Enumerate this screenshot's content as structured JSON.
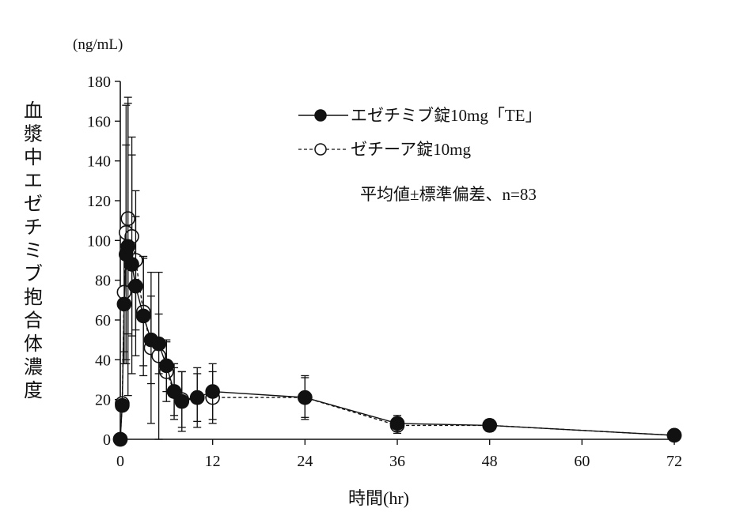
{
  "chart_data": {
    "type": "line",
    "title": "",
    "unit_label": "(ng/mL)",
    "ylabel": "血漿中エゼチミブ抱合体濃度",
    "xlabel": "時間(hr)",
    "xlim": [
      0,
      72
    ],
    "ylim": [
      0,
      180
    ],
    "xticks": [
      0,
      12,
      24,
      36,
      48,
      60,
      72
    ],
    "yticks": [
      0,
      20,
      40,
      60,
      80,
      100,
      120,
      140,
      160,
      180
    ],
    "grid": false,
    "legend_position": "top-right",
    "stats_note": "平均値±標準偏差、n=83",
    "series": [
      {
        "name": "エゼチミブ錠10mg「TE」",
        "marker": "filled-circle",
        "line_style": "solid",
        "color": "#111111",
        "points": [
          {
            "x": 0,
            "y": 0,
            "sd": 0
          },
          {
            "x": 0.25,
            "y": 17,
            "sd": 0
          },
          {
            "x": 0.5,
            "y": 68,
            "sd": 30
          },
          {
            "x": 0.75,
            "y": 93,
            "sd": 55
          },
          {
            "x": 1,
            "y": 97,
            "sd": 75
          },
          {
            "x": 1.5,
            "y": 88,
            "sd": 55
          },
          {
            "x": 2,
            "y": 77,
            "sd": 35
          },
          {
            "x": 3,
            "y": 62,
            "sd": 30
          },
          {
            "x": 4,
            "y": 50,
            "sd": 22
          },
          {
            "x": 5,
            "y": 48,
            "sd": 15
          },
          {
            "x": 6,
            "y": 37,
            "sd": 13
          },
          {
            "x": 7,
            "y": 24,
            "sd": 12
          },
          {
            "x": 8,
            "y": 19,
            "sd": 15
          },
          {
            "x": 10,
            "y": 21,
            "sd": 15
          },
          {
            "x": 12,
            "y": 24,
            "sd": 14
          },
          {
            "x": 24,
            "y": 21,
            "sd": 11
          },
          {
            "x": 36,
            "y": 8,
            "sd": 4
          },
          {
            "x": 48,
            "y": 7,
            "sd": 3
          },
          {
            "x": 72,
            "y": 2,
            "sd": 1
          }
        ]
      },
      {
        "name": "ゼチーア錠10mg",
        "marker": "open-circle",
        "line_style": "dashed",
        "color": "#111111",
        "points": [
          {
            "x": 0,
            "y": 0,
            "sd": 0
          },
          {
            "x": 0.25,
            "y": 18,
            "sd": 0
          },
          {
            "x": 0.5,
            "y": 74,
            "sd": 30
          },
          {
            "x": 0.75,
            "y": 104,
            "sd": 64
          },
          {
            "x": 1,
            "y": 111,
            "sd": 58
          },
          {
            "x": 1.5,
            "y": 102,
            "sd": 50
          },
          {
            "x": 2,
            "y": 90,
            "sd": 35
          },
          {
            "x": 3,
            "y": 64,
            "sd": 27
          },
          {
            "x": 4,
            "y": 46,
            "sd": 38
          },
          {
            "x": 5,
            "y": 42,
            "sd": 42
          },
          {
            "x": 6,
            "y": 34,
            "sd": 15
          },
          {
            "x": 7,
            "y": 24,
            "sd": 14
          },
          {
            "x": 8,
            "y": 20,
            "sd": 14
          },
          {
            "x": 10,
            "y": 21,
            "sd": 12
          },
          {
            "x": 12,
            "y": 21,
            "sd": 13
          },
          {
            "x": 24,
            "y": 21,
            "sd": 10
          },
          {
            "x": 36,
            "y": 7,
            "sd": 4
          },
          {
            "x": 48,
            "y": 7,
            "sd": 3
          },
          {
            "x": 72,
            "y": 2,
            "sd": 1
          }
        ]
      }
    ]
  }
}
